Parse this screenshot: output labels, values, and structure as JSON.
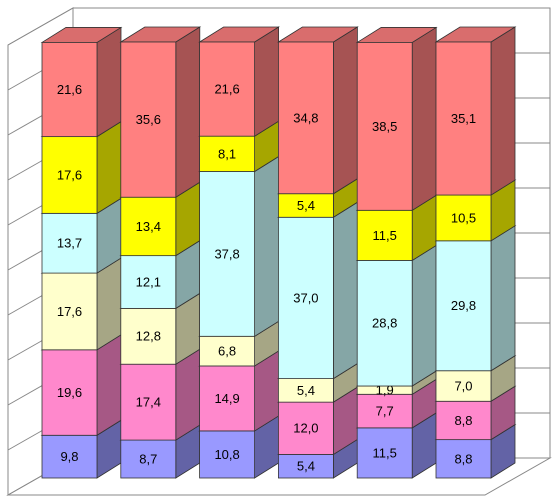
{
  "chart_data": {
    "type": "stacked-bar-3d",
    "categories": [
      null,
      null,
      null,
      null,
      null,
      null
    ],
    "ylim": [
      0,
      100
    ],
    "yticks": [
      0,
      10,
      20,
      30,
      40,
      50,
      60,
      70,
      80,
      90,
      100
    ],
    "grid": true,
    "series": [
      {
        "color": "#9999ff",
        "values": [
          9.8,
          8.7,
          10.8,
          5.4,
          11.5,
          8.8
        ],
        "value_labels": [
          "9,8",
          "8,7",
          "10,8",
          "5,4",
          "11,5",
          "8,8"
        ]
      },
      {
        "color": "#ff88cc",
        "values": [
          19.6,
          17.4,
          14.9,
          12.0,
          7.7,
          8.8
        ],
        "value_labels": [
          "19,6",
          "17,4",
          "14,9",
          "12,0",
          "7,7",
          "8,8"
        ]
      },
      {
        "color": "#ffffcc",
        "values": [
          17.6,
          12.8,
          6.8,
          5.4,
          1.9,
          7.0
        ],
        "value_labels": [
          "17,6",
          "12,8",
          "6,8",
          "5,4",
          "1,9",
          "7,0"
        ]
      },
      {
        "color": "#ccffff",
        "values": [
          13.7,
          12.1,
          37.8,
          37.0,
          28.8,
          29.8
        ],
        "value_labels": [
          "13,7",
          "12,1",
          "37,8",
          "37,0",
          "28,8",
          "29,8"
        ]
      },
      {
        "color": "#ffff00",
        "values": [
          17.6,
          13.4,
          8.1,
          5.4,
          11.5,
          10.5
        ],
        "value_labels": [
          "17,6",
          "13,4",
          "8,1",
          "5,4",
          "11,5",
          "10,5"
        ]
      },
      {
        "color": "#ff8080",
        "values": [
          21.6,
          35.6,
          21.6,
          34.8,
          38.5,
          35.1
        ],
        "value_labels": [
          "21,6",
          "35,6",
          "21,6",
          "34,8",
          "38,5",
          "35,1"
        ]
      }
    ]
  }
}
